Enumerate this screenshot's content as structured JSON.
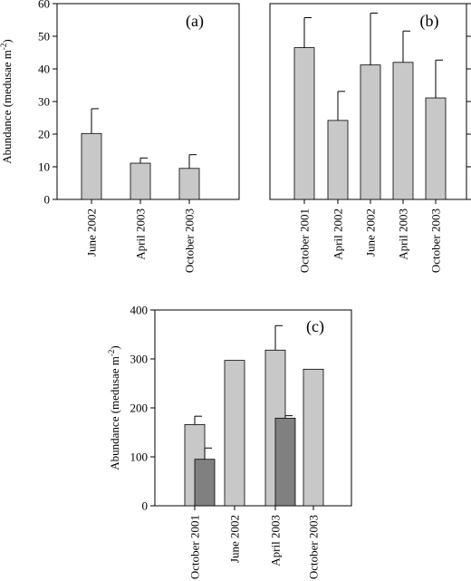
{
  "chart_data": [
    {
      "panel": "(a)",
      "type": "bar",
      "categories": [
        "June 2002",
        "April 2003",
        "October 2003"
      ],
      "values": [
        20.2,
        11.1,
        9.5
      ],
      "errors": [
        7.6,
        1.6,
        4.2
      ],
      "ylabel": "Abundance (medusae m",
      "ylabel_sup": "-2",
      "ylabel_close": ")",
      "ylim": [
        0,
        60
      ],
      "yticks": [
        0,
        10,
        20,
        30,
        40,
        50,
        60
      ],
      "colors": [
        "#c8c8c8"
      ]
    },
    {
      "panel": "(b)",
      "type": "bar",
      "categories": [
        "October 2001",
        "April 2002",
        "June 2002",
        "April 2003",
        "October 2003"
      ],
      "values": [
        46.5,
        24.2,
        41.2,
        42.0,
        31.1
      ],
      "errors": [
        9.2,
        8.9,
        15.9,
        9.6,
        11.6
      ],
      "ylim": [
        0,
        60
      ],
      "yticks": [
        0,
        10,
        20,
        30,
        40,
        50,
        60
      ],
      "colors": [
        "#c8c8c8"
      ]
    },
    {
      "panel": "(c)",
      "type": "bar",
      "categories": [
        "October 2001",
        "June 2002",
        "April 2003",
        "October 2003"
      ],
      "series": [
        {
          "values": [
            166,
            297,
            318,
            279
          ],
          "errors": [
            17,
            0,
            50,
            0
          ]
        },
        {
          "values": [
            95,
            null,
            179,
            null
          ],
          "errors": [
            23,
            null,
            5,
            null
          ]
        }
      ],
      "ylabel": "Abundance (medusae m",
      "ylabel_sup": "-2",
      "ylabel_close": ")",
      "ylim": [
        0,
        400
      ],
      "yticks": [
        0,
        100,
        200,
        300,
        400
      ],
      "colors": [
        "#c8c8c8",
        "#808080"
      ]
    }
  ]
}
